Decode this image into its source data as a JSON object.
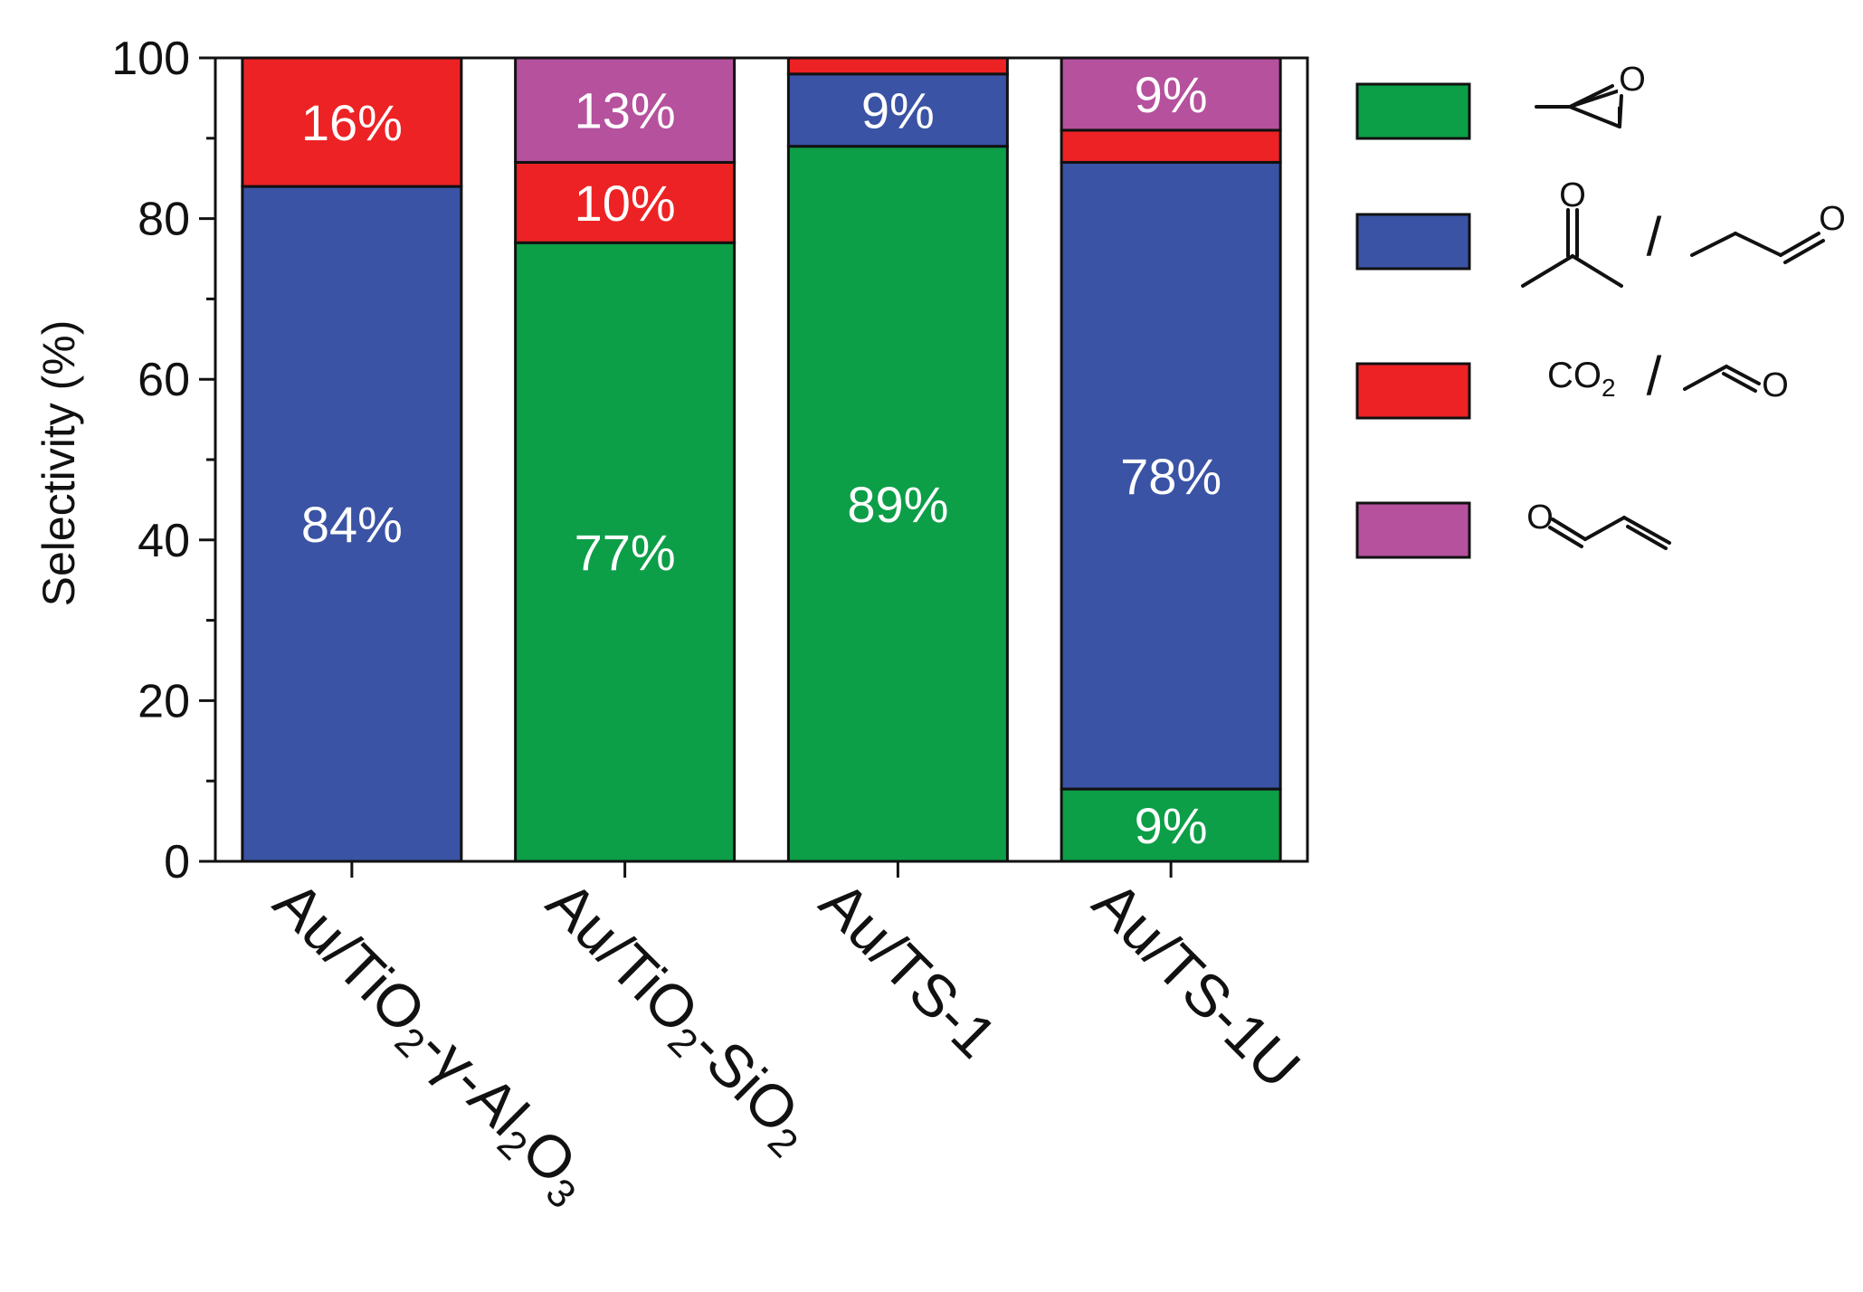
{
  "chart_data": {
    "type": "bar",
    "stacked": true,
    "ylabel": "Selectivity (%)",
    "ylim": [
      0,
      100
    ],
    "yticks": [
      0,
      20,
      40,
      60,
      80,
      100
    ],
    "categories": [
      {
        "parts": [
          [
            "Au/TiO",
            ""
          ],
          [
            "2",
            "sub"
          ],
          [
            "-γ-Al",
            ""
          ],
          [
            "2",
            "sub"
          ],
          [
            "O",
            ""
          ],
          [
            "3",
            "sub"
          ]
        ],
        "text": "Au/TiO2-γ-Al2O3"
      },
      {
        "parts": [
          [
            "Au/TiO",
            ""
          ],
          [
            "2",
            "sub"
          ],
          [
            "-SiO",
            ""
          ],
          [
            "2",
            "sub"
          ]
        ],
        "text": "Au/TiO2-SiO2"
      },
      {
        "parts": [
          [
            "Au/TS-1",
            ""
          ]
        ],
        "text": "Au/TS-1"
      },
      {
        "parts": [
          [
            "Au/TS-1U",
            ""
          ]
        ],
        "text": "Au/TS-1U"
      }
    ],
    "series": [
      {
        "legend_key": "propylene-oxide",
        "color": "#0d9e48",
        "values": [
          0,
          77,
          89,
          9
        ],
        "labels": [
          "",
          "77%",
          "89%",
          "9%"
        ]
      },
      {
        "legend_key": "acetone-propanal",
        "color": "#3a53a4",
        "values": [
          84,
          0,
          9,
          78
        ],
        "labels": [
          "84%",
          "",
          "9%",
          "78%"
        ]
      },
      {
        "legend_key": "co2-acetaldehyde",
        "color": "#ed2224",
        "values": [
          16,
          10,
          2,
          4
        ],
        "labels": [
          "16%",
          "10%",
          "",
          ""
        ]
      },
      {
        "legend_key": "acrolein",
        "color": "#b5519d",
        "values": [
          0,
          13,
          0,
          9
        ],
        "labels": [
          "",
          "13%",
          "",
          "9%"
        ]
      }
    ],
    "legend": {
      "placement": "right",
      "co2_text": "CO",
      "co2_sub": "2",
      "separator": "/",
      "atom_o": "O"
    }
  }
}
